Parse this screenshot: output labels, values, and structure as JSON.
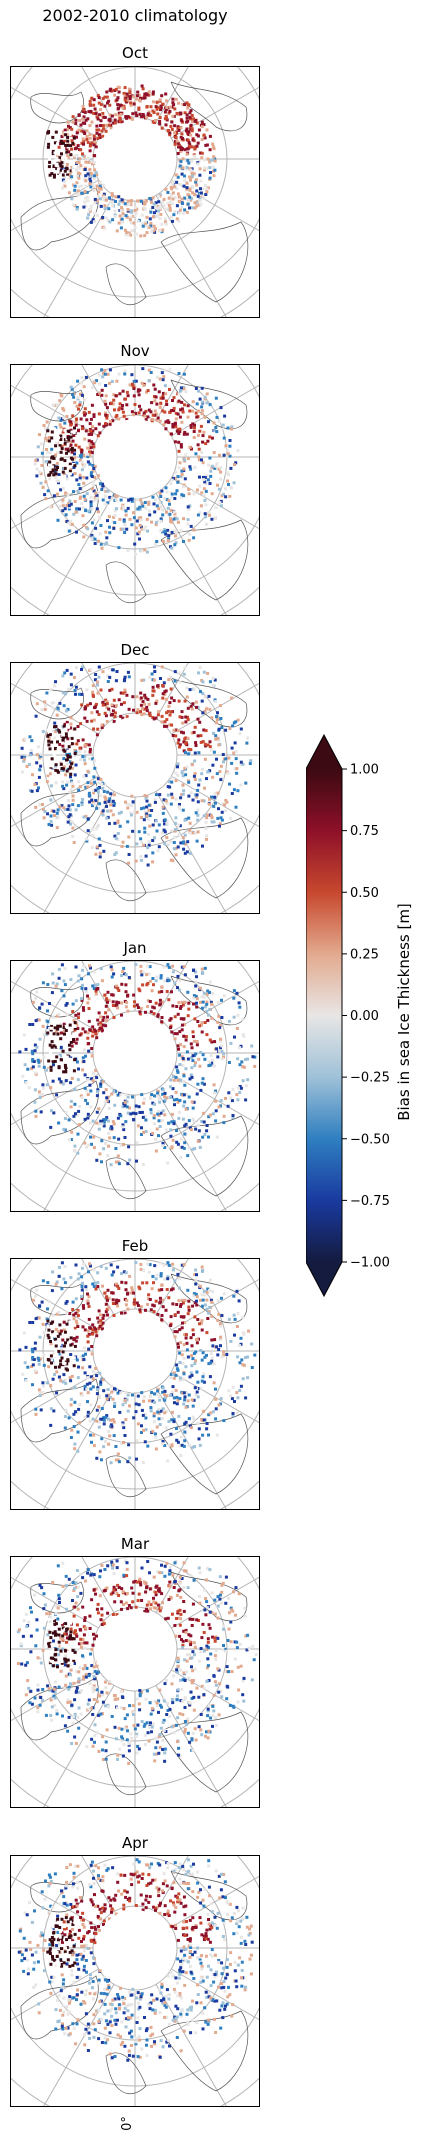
{
  "figure": {
    "title": "2002-2010 climatology",
    "bottom_axis_label": "0°"
  },
  "colorbar": {
    "label": "Bias in sea Ice Thickness [m]",
    "ticks": [
      "1.00",
      "0.75",
      "0.50",
      "0.25",
      "0.00",
      "−0.25",
      "−0.50",
      "−0.75",
      "−1.00"
    ],
    "min": -1.0,
    "max": 1.0,
    "extend": "both",
    "colormap_stops": [
      "#141b3f",
      "#1a3aa0",
      "#2f7fc0",
      "#9fc1d8",
      "#e8e6e5",
      "#e2a98e",
      "#c7482e",
      "#8e1029",
      "#3b0a12"
    ]
  },
  "chart_data": {
    "type": "heatmap",
    "projection": "north polar stereographic",
    "title": "2002-2010 climatology",
    "panels": [
      "Oct",
      "Nov",
      "Dec",
      "Jan",
      "Feb",
      "Mar",
      "Apr"
    ],
    "colorbar_label": "Bias in sea Ice Thickness [m]",
    "value_range": [
      -1.0,
      1.0
    ],
    "grid": true,
    "legend_placement": "right"
  }
}
